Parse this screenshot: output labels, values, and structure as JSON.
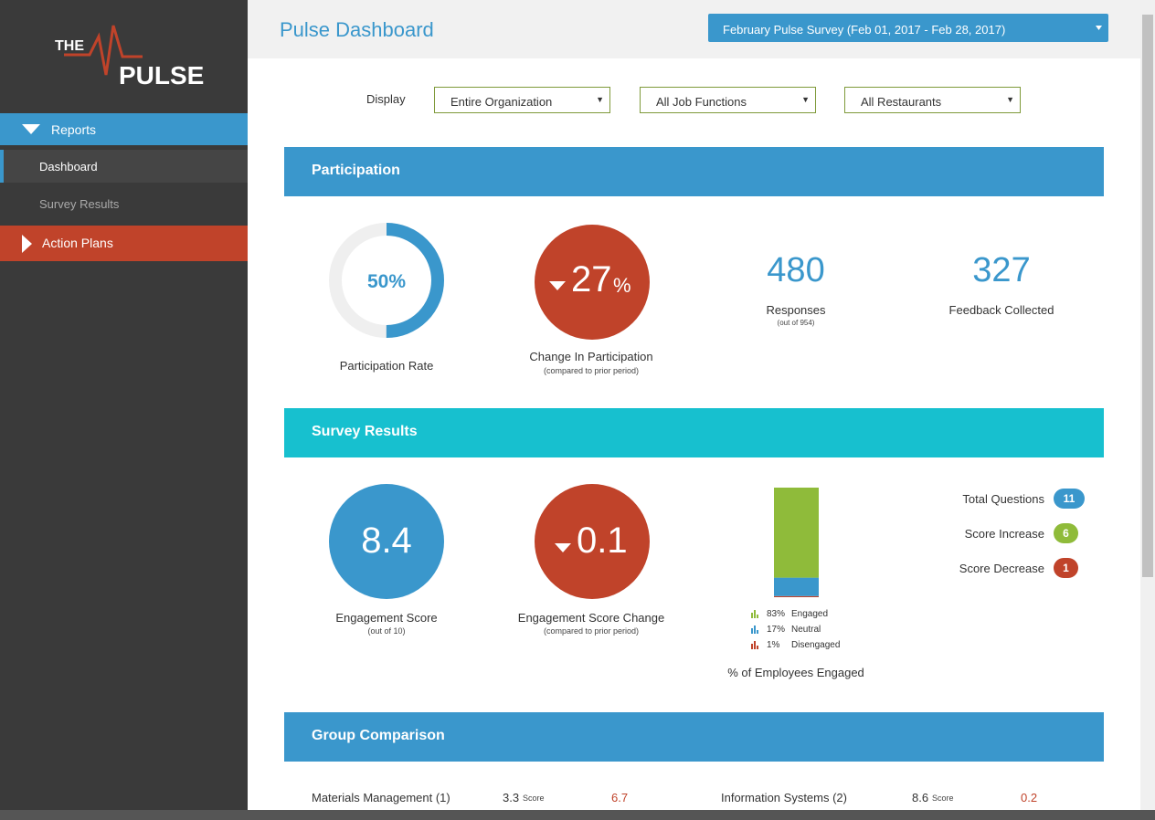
{
  "sidebar": {
    "logo": {
      "line1": "THE",
      "line2": "PULSE"
    },
    "menu": [
      {
        "label": "Reports"
      },
      {
        "label": "Dashboard"
      },
      {
        "label": "Survey Results"
      },
      {
        "label": "Action Plans"
      }
    ]
  },
  "header": {
    "title": "Pulse Dashboard",
    "survey_select": "February Pulse Survey (Feb 01, 2017 - Feb 28, 2017)"
  },
  "filters": {
    "label": "Display",
    "selects": [
      "Entire Organization",
      "All Job Functions",
      "All Restaurants"
    ]
  },
  "participation": {
    "title": "Participation",
    "rate": {
      "value": 50,
      "label": "50%",
      "caption": "Participation Rate"
    },
    "change": {
      "number": "27",
      "unit": "%",
      "caption": "Change In Participation",
      "note": "(compared to prior period)"
    },
    "responses": {
      "value": "480",
      "caption": "Responses",
      "note": "(out of 954)"
    },
    "feedback": {
      "value": "327",
      "caption": "Feedback Collected"
    }
  },
  "survey_results": {
    "title": "Survey Results",
    "engagement": {
      "value": "8.4",
      "caption": "Engagement Score",
      "note": "(out of 10)"
    },
    "change": {
      "value": "0.1",
      "caption": "Engagement Score Change",
      "note": "(compared to prior period)"
    },
    "breakdown": {
      "caption": "% of Employees Engaged",
      "segments": [
        {
          "value": 83,
          "label": "83%",
          "name": "Engaged",
          "color": "#8fbb3a"
        },
        {
          "value": 17,
          "label": "17%",
          "name": "Neutral",
          "color": "#3a97cc"
        },
        {
          "value": 1,
          "label": "1%",
          "name": "Disengaged",
          "color": "#c0432a"
        }
      ]
    },
    "counts": [
      {
        "label": "Total Questions",
        "value": "11",
        "color": "#3a97cc"
      },
      {
        "label": "Score Increase",
        "value": "6",
        "color": "#8fbb3a"
      },
      {
        "label": "Score Decrease",
        "value": "1",
        "color": "#c0432a"
      }
    ]
  },
  "group_comparison": {
    "title": "Group Comparison",
    "rows": [
      {
        "group": "Materials Management (1)",
        "score": "3.3",
        "score_label": "Score",
        "change": "6.7"
      },
      {
        "group": "Information Systems (2)",
        "score": "8.6",
        "score_label": "Score",
        "change": "0.2"
      }
    ]
  }
}
